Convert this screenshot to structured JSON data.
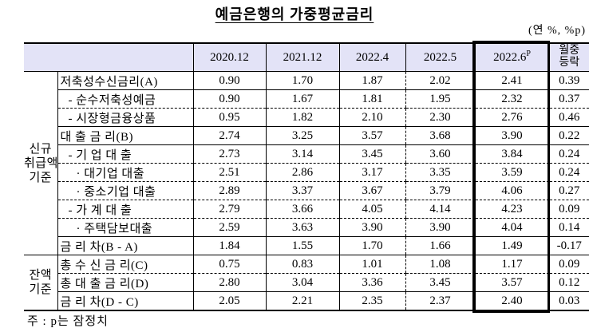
{
  "title": "예금은행의 가중평균금리",
  "unit_label": "(연 %, %p)",
  "footnote": "주 : p는 잠정치",
  "colors": {
    "header_bg": "#e3e3f7",
    "border": "#000000",
    "highlight_box_border": "#000000"
  },
  "table": {
    "col_headers": [
      {
        "label": "2020.12"
      },
      {
        "label": "2021.12"
      },
      {
        "label": "2022.4"
      },
      {
        "label": "2022.5"
      },
      {
        "label": "2022.6",
        "sup": "P",
        "highlighted": true
      },
      {
        "label": "월중등락",
        "lines": [
          "월중",
          "등락"
        ]
      }
    ],
    "groups": [
      {
        "label": "신규 취급액 기준",
        "label_lines": [
          "신규",
          "취급액",
          "기준"
        ],
        "rows": [
          {
            "label": "저축성수신금리(A)",
            "level": 0,
            "values": [
              "0.90",
              "1.70",
              "1.87",
              "2.02",
              "2.41",
              "0.39"
            ],
            "border": "solid"
          },
          {
            "label": "- 순수저축성예금",
            "level": 1,
            "values": [
              "0.90",
              "1.67",
              "1.81",
              "1.95",
              "2.32",
              "0.37"
            ],
            "border": "dashed"
          },
          {
            "label": "- 시장형금융상품",
            "level": 1,
            "values": [
              "0.95",
              "1.82",
              "2.10",
              "2.30",
              "2.76",
              "0.46"
            ],
            "border": "solid"
          },
          {
            "label": "대 출 금 리(B)",
            "level": 0,
            "values": [
              "2.74",
              "3.25",
              "3.57",
              "3.68",
              "3.90",
              "0.22"
            ],
            "border": "solid"
          },
          {
            "label": "- 기 업 대 출",
            "level": 1,
            "values": [
              "2.73",
              "3.14",
              "3.45",
              "3.60",
              "3.84",
              "0.24"
            ],
            "border": "dashed"
          },
          {
            "label": "· 대기업 대출",
            "level": 2,
            "values": [
              "2.51",
              "2.86",
              "3.17",
              "3.35",
              "3.59",
              "0.24"
            ],
            "border": "dashed"
          },
          {
            "label": "· 중소기업 대출",
            "level": 2,
            "values": [
              "2.89",
              "3.37",
              "3.67",
              "3.79",
              "4.06",
              "0.27"
            ],
            "border": "dashed"
          },
          {
            "label": "- 가 계 대 출",
            "level": 1,
            "values": [
              "2.79",
              "3.66",
              "4.05",
              "4.14",
              "4.23",
              "0.09"
            ],
            "border": "dashed"
          },
          {
            "label": "· 주택담보대출",
            "level": 2,
            "values": [
              "2.59",
              "3.63",
              "3.90",
              "3.90",
              "4.04",
              "0.14"
            ],
            "border": "solid"
          },
          {
            "label": "금 리 차(B - A)",
            "level": 0,
            "values": [
              "1.84",
              "1.55",
              "1.70",
              "1.66",
              "1.49",
              "-0.17"
            ],
            "border": "solid"
          }
        ]
      },
      {
        "label": "잔액 기준",
        "label_lines": [
          "잔액",
          "기준"
        ],
        "rows": [
          {
            "label": "총 수 신 금 리(C)",
            "level": 0,
            "values": [
              "0.75",
              "0.83",
              "1.01",
              "1.08",
              "1.17",
              "0.09"
            ],
            "border": "dashed"
          },
          {
            "label": "총 대 출 금 리(D)",
            "level": 0,
            "values": [
              "2.80",
              "3.04",
              "3.36",
              "3.45",
              "3.57",
              "0.12"
            ],
            "border": "solid"
          },
          {
            "label": "금 리 차(D - C)",
            "level": 0,
            "values": [
              "2.05",
              "2.21",
              "2.35",
              "2.37",
              "2.40",
              "0.03"
            ],
            "border": "none"
          }
        ]
      }
    ]
  }
}
